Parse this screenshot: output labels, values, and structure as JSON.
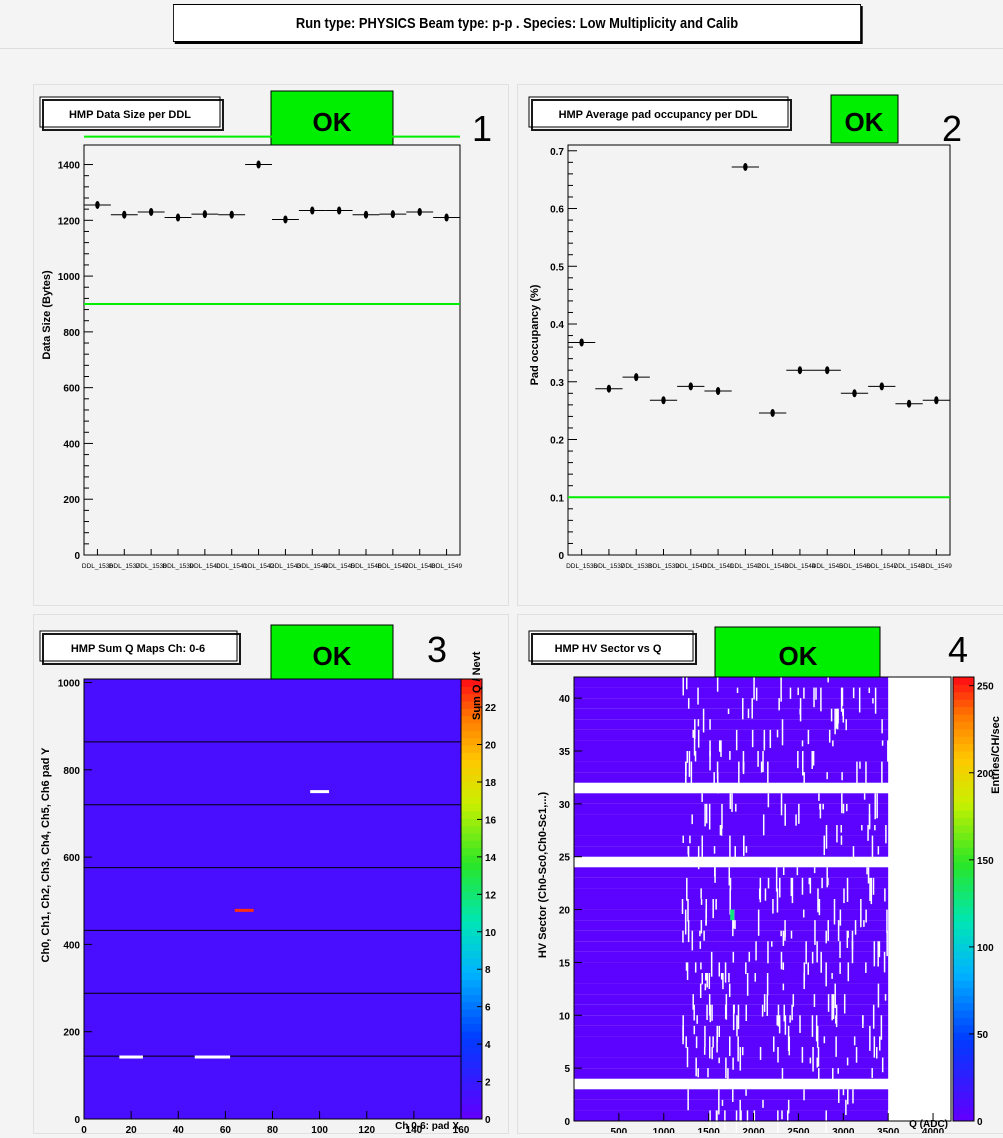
{
  "header": {
    "title": "Run type: PHYSICS Beam type: p-p . Species: Low Multiplicity and Calib"
  },
  "panels": [
    {
      "number": "1",
      "title": "HMP Data Size per DDL",
      "status": "OK",
      "status_color": "#00ee00"
    },
    {
      "number": "2",
      "title": "HMP Average pad occupancy per DDL",
      "status": "OK",
      "status_color": "#00ee00"
    },
    {
      "number": "3",
      "title": "HMP Sum Q Maps Ch: 0-6",
      "status": "OK",
      "status_color": "#00ee00"
    },
    {
      "number": "4",
      "title": "HMP HV Sector vs Q",
      "status": "OK",
      "status_color": "#00ee00"
    }
  ],
  "chart_data": [
    {
      "type": "scatter",
      "title": "HMP Data Size per DDL",
      "ylabel": "Data Size (Bytes)",
      "xlabel": "",
      "categories": [
        "DDL_1536",
        "DDL_1537",
        "DDL_1538",
        "DDL_1539",
        "DDL_1540",
        "DDL_1541",
        "DDL_1542",
        "DDL_1543",
        "DDL_1544",
        "DDL_1545",
        "DDL_1546",
        "DDL_1547",
        "DDL_1548",
        "DDL_1549"
      ],
      "values": [
        1255,
        1220,
        1230,
        1210,
        1222,
        1220,
        1400,
        1203,
        1235,
        1235,
        1220,
        1222,
        1230,
        1210
      ],
      "ylim": [
        0,
        1470
      ],
      "yticks": [
        0,
        200,
        400,
        600,
        800,
        1000,
        1200,
        1400
      ],
      "thresholds": [
        900,
        1500
      ],
      "threshold_color": "#00ee00"
    },
    {
      "type": "scatter",
      "title": "HMP Average pad occupancy per DDL",
      "ylabel": "Pad occupancy (%)",
      "xlabel": "",
      "categories": [
        "DDL_1536",
        "DDL_1537",
        "DDL_1538",
        "DDL_1539",
        "DDL_1540",
        "DDL_1541",
        "DDL_1542",
        "DDL_1543",
        "DDL_1544",
        "DDL_1545",
        "DDL_1546",
        "DDL_1547",
        "DDL_1548",
        "DDL_1549"
      ],
      "values": [
        0.368,
        0.288,
        0.308,
        0.268,
        0.292,
        0.284,
        0.672,
        0.246,
        0.32,
        0.32,
        0.28,
        0.292,
        0.262,
        0.268
      ],
      "ylim": [
        0,
        0.71
      ],
      "yticks": [
        "0",
        "0.1",
        "0.2",
        "0.3",
        "0.4",
        "0.5",
        "0.6",
        "0.7"
      ],
      "thresholds": [
        0.1
      ],
      "threshold_color": "#00ee00"
    },
    {
      "type": "heatmap",
      "title": "HMP Sum Q Maps Ch: 0-6",
      "xlabel": "Ch 0-6: pad X",
      "ylabel": "Ch0, Ch1, Ch2, Ch3, Ch4, Ch5, Ch6 pad Y",
      "zlabel": "Sum Q / Nevt",
      "xlim": [
        0,
        160
      ],
      "ylim": [
        0,
        1008
      ],
      "xticks": [
        "0",
        "20",
        "40",
        "60",
        "80",
        "100",
        "120",
        "140",
        "160"
      ],
      "yticks": [
        "0",
        "200",
        "400",
        "600",
        "800",
        "1000"
      ],
      "zticks": [
        "0",
        "2",
        "4",
        "6",
        "8",
        "10",
        "12",
        "14",
        "16",
        "18",
        "20",
        "22"
      ],
      "zlim": [
        0,
        23.5
      ],
      "background_value": 1,
      "chamber_boundaries": [
        144,
        288,
        432,
        576,
        720,
        864
      ],
      "hotspots": [
        {
          "x1": 64,
          "x2": 72,
          "y": 478,
          "value": 23
        },
        {
          "x1": 96,
          "x2": 104,
          "y": 750,
          "value": 0
        },
        {
          "x1": 15,
          "x2": 25,
          "y": 142,
          "value": 0
        },
        {
          "x1": 47,
          "x2": 62,
          "y": 142,
          "value": 0
        }
      ]
    },
    {
      "type": "heatmap",
      "title": "HMP HV Sector vs Q",
      "xlabel": "Q (ADC)",
      "ylabel": "HV Sector (Ch0-Sc0,Ch0-Sc1,...)",
      "zlabel": "Entries/CH/sec",
      "xlim": [
        0,
        4200
      ],
      "ylim": [
        0,
        42
      ],
      "xticks": [
        "500",
        "1000",
        "1500",
        "2000",
        "2500",
        "3000",
        "3500",
        "4000"
      ],
      "yticks": [
        "0",
        "5",
        "10",
        "15",
        "20",
        "25",
        "30",
        "35",
        "40"
      ],
      "zticks": [
        "0",
        "50",
        "100",
        "150",
        "200",
        "250"
      ],
      "zlim": [
        0,
        255
      ],
      "background_value": 2,
      "empty_sectors": [
        3,
        24,
        31
      ],
      "q_extent": 3500
    }
  ]
}
